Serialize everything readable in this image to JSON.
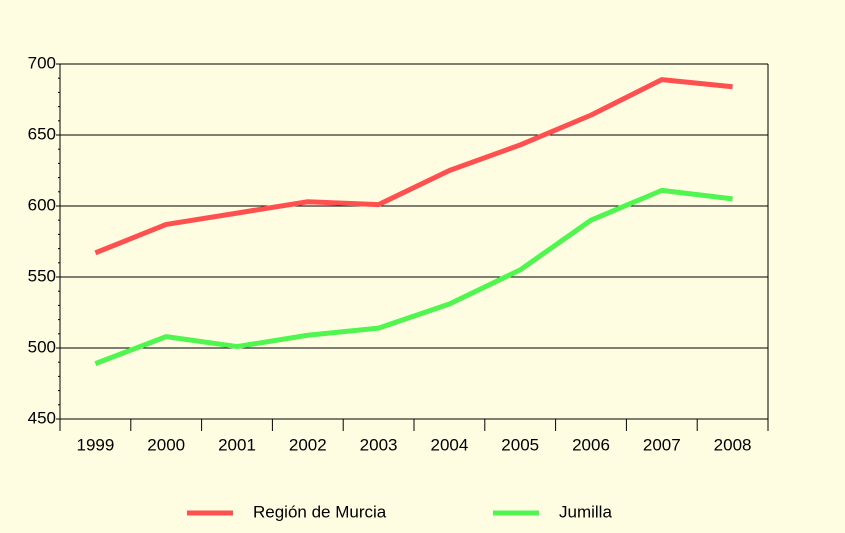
{
  "chart_data": {
    "type": "line",
    "categories": [
      "1999",
      "2000",
      "2001",
      "2002",
      "2003",
      "2004",
      "2005",
      "2006",
      "2007",
      "2008"
    ],
    "series": [
      {
        "name": "Región de Murcia",
        "color": "#ff5050",
        "values": [
          567,
          587,
          595,
          603,
          601,
          625,
          643,
          664,
          689,
          684
        ]
      },
      {
        "name": "Jumilla",
        "color": "#50f550",
        "values": [
          489,
          508,
          501,
          509,
          514,
          531,
          555,
          590,
          611,
          605
        ]
      }
    ],
    "ylim": [
      450,
      700
    ],
    "yticks": [
      450,
      500,
      550,
      600,
      650,
      700
    ],
    "grid": true,
    "legend": "bottom"
  }
}
